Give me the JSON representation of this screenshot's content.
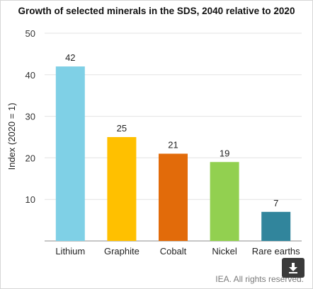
{
  "chart_data": {
    "type": "bar",
    "title": "Growth of selected minerals in the SDS, 2040 relative to 2020",
    "xlabel": "",
    "ylabel": "Index (2020 = 1)",
    "ylim": [
      0,
      50
    ],
    "yticks": [
      10,
      20,
      30,
      40,
      50
    ],
    "categories": [
      "Lithium",
      "Graphite",
      "Cobalt",
      "Nickel",
      "Rare earths"
    ],
    "values": [
      42,
      25,
      21,
      19,
      7
    ],
    "colors": [
      "#7fd0e6",
      "#ffc000",
      "#e26b0a",
      "#92d050",
      "#31859c"
    ],
    "grid": true,
    "data_labels": true
  },
  "footer": {
    "credit": "IEA. All rights reserved."
  },
  "toolbar": {
    "download_icon": "download-arrow-icon"
  }
}
